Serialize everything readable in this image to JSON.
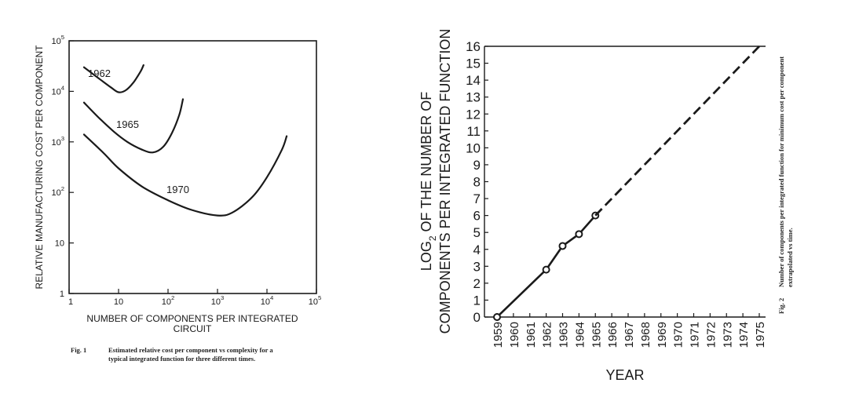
{
  "chart_data": [
    {
      "type": "line",
      "xlabel": "NUMBER OF COMPONENTS PER INTEGRATED CIRCUIT",
      "xlabel_lines": [
        "NUMBER OF COMPONENTS PER INTEGRATED",
        "CIRCUIT"
      ],
      "ylabel": "RELATIVE MANUFACTURING COST PER COMPONENT",
      "x_scale": "log",
      "y_scale": "log",
      "xlim": [
        1,
        100000
      ],
      "ylim": [
        1,
        100000
      ],
      "x_ticks": [
        {
          "value": 1,
          "label": "1",
          "exp": ""
        },
        {
          "value": 10,
          "label": "10",
          "exp": ""
        },
        {
          "value": 100,
          "label": "10",
          "exp": "2"
        },
        {
          "value": 1000,
          "label": "10",
          "exp": "3"
        },
        {
          "value": 10000,
          "label": "10",
          "exp": "4"
        },
        {
          "value": 100000,
          "label": "10",
          "exp": "5"
        }
      ],
      "y_ticks": [
        {
          "value": 1,
          "label": "1",
          "exp": ""
        },
        {
          "value": 10,
          "label": "10",
          "exp": ""
        },
        {
          "value": 100,
          "label": "10",
          "exp": "2"
        },
        {
          "value": 1000,
          "label": "10",
          "exp": "3"
        },
        {
          "value": 10000,
          "label": "10",
          "exp": "4"
        },
        {
          "value": 100000,
          "label": "10",
          "exp": "5"
        }
      ],
      "series": [
        {
          "name": "1962",
          "x": [
            2,
            4,
            7,
            10,
            14,
            20,
            28,
            32
          ],
          "y": [
            30000,
            18000,
            12000,
            9600,
            10500,
            15000,
            25000,
            33000
          ]
        },
        {
          "name": "1965",
          "x": [
            2,
            4,
            8,
            15,
            30,
            50,
            80,
            120,
            170,
            200
          ],
          "y": [
            6000,
            3000,
            1600,
            1000,
            700,
            620,
            800,
            1500,
            3500,
            7000
          ]
        },
        {
          "name": "1970",
          "x": [
            2,
            5,
            10,
            30,
            100,
            300,
            1000,
            2000,
            5000,
            10000,
            20000,
            25000
          ],
          "y": [
            1400,
            600,
            300,
            130,
            70,
            45,
            35,
            40,
            80,
            200,
            700,
            1300
          ]
        }
      ],
      "series_labels": [
        "1962",
        "1965",
        "1970"
      ],
      "caption_label": "Fig. 1",
      "caption_text": "Estimated relative cost per component vs complexity for a typical integrated function for three different times."
    },
    {
      "type": "line",
      "xlabel": "YEAR",
      "ylabel_line1": "LOG",
      "ylabel_sub": "2",
      "ylabel_line1_rest": "OF THE NUMBER OF",
      "ylabel_line2": "COMPONENTS PER INTEGRATED FUNCTION",
      "categories": [
        "1959",
        "1960",
        "1961",
        "1962",
        "1963",
        "1964",
        "1965",
        "1966",
        "1967",
        "1968",
        "1969",
        "1970",
        "1971",
        "1972",
        "1973",
        "1974",
        "1975"
      ],
      "y_ticks": [
        "0",
        "1",
        "2",
        "3",
        "4",
        "5",
        "6",
        "7",
        "8",
        "9",
        "10",
        "11",
        "12",
        "13",
        "14",
        "15",
        "16"
      ],
      "ylim": [
        0,
        16
      ],
      "measured": {
        "x": [
          1959,
          1962,
          1963,
          1964,
          1965
        ],
        "y": [
          0,
          2.8,
          4.2,
          4.9,
          6.0
        ]
      },
      "extrapolated": {
        "x": [
          1965,
          1975
        ],
        "y": [
          6.0,
          16
        ]
      },
      "caption_label": "Fig. 2",
      "caption_text": "Number of components per integrated function for minimum cost per component extrapolated vs time."
    }
  ],
  "colors": {
    "ink": "#1a1a1a",
    "paper": "#ffffff"
  }
}
